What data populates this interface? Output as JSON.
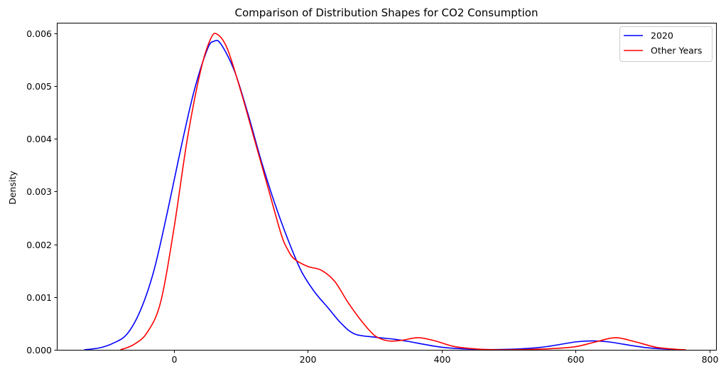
{
  "chart_data": {
    "type": "line",
    "title": "Comparison of Distribution Shapes for CO2 Consumption",
    "xlabel": "",
    "ylabel": "Density",
    "xlim": [
      -175,
      810
    ],
    "ylim": [
      0,
      0.0062
    ],
    "xticks": [
      0,
      200,
      400,
      600,
      800
    ],
    "xtick_labels": [
      "0",
      "200",
      "400",
      "600",
      "800"
    ],
    "yticks": [
      0,
      0.001,
      0.002,
      0.003,
      0.004,
      0.005,
      0.006
    ],
    "ytick_labels": [
      "0.000",
      "0.001",
      "0.002",
      "0.003",
      "0.004",
      "0.005",
      "0.006"
    ],
    "grid": false,
    "legend_position": "top-right",
    "series": [
      {
        "name": "2020",
        "color": "#0000ff",
        "points": [
          [
            -134,
            0.0
          ],
          [
            -110,
            4e-05
          ],
          [
            -90,
            0.00013
          ],
          [
            -70,
            0.0003
          ],
          [
            -50,
            0.00075
          ],
          [
            -30,
            0.0015
          ],
          [
            -10,
            0.0026
          ],
          [
            10,
            0.0038
          ],
          [
            30,
            0.0049
          ],
          [
            50,
            0.0057
          ],
          [
            60,
            0.00585
          ],
          [
            70,
            0.0058
          ],
          [
            90,
            0.0053
          ],
          [
            110,
            0.0045
          ],
          [
            130,
            0.0036
          ],
          [
            150,
            0.0028
          ],
          [
            170,
            0.0021
          ],
          [
            190,
            0.0015
          ],
          [
            210,
            0.0011
          ],
          [
            230,
            0.0008
          ],
          [
            250,
            0.0005
          ],
          [
            270,
            0.0003
          ],
          [
            300,
            0.00024
          ],
          [
            330,
            0.0002
          ],
          [
            350,
            0.00016
          ],
          [
            400,
            5e-05
          ],
          [
            450,
            1e-05
          ],
          [
            500,
            1e-05
          ],
          [
            550,
            5e-05
          ],
          [
            600,
            0.00015
          ],
          [
            625,
            0.00017
          ],
          [
            650,
            0.00015
          ],
          [
            700,
            5e-05
          ],
          [
            740,
            1e-05
          ],
          [
            760,
            0.0
          ]
        ]
      },
      {
        "name": "Other Years",
        "color": "#ff0000",
        "points": [
          [
            -80,
            0.0
          ],
          [
            -60,
            0.0001
          ],
          [
            -40,
            0.00033
          ],
          [
            -20,
            0.0009
          ],
          [
            0,
            0.0023
          ],
          [
            20,
            0.004
          ],
          [
            40,
            0.0053
          ],
          [
            55,
            0.0059
          ],
          [
            65,
            0.00598
          ],
          [
            80,
            0.0057
          ],
          [
            100,
            0.0049
          ],
          [
            120,
            0.004
          ],
          [
            140,
            0.0031
          ],
          [
            160,
            0.0022
          ],
          [
            170,
            0.0019
          ],
          [
            180,
            0.00172
          ],
          [
            200,
            0.00158
          ],
          [
            220,
            0.00151
          ],
          [
            240,
            0.0013
          ],
          [
            260,
            0.0009
          ],
          [
            280,
            0.00055
          ],
          [
            300,
            0.00027
          ],
          [
            320,
            0.00017
          ],
          [
            340,
            0.00018
          ],
          [
            365,
            0.00023
          ],
          [
            390,
            0.00017
          ],
          [
            420,
            6e-05
          ],
          [
            460,
            1e-05
          ],
          [
            500,
            0.0
          ],
          [
            560,
            2e-05
          ],
          [
            600,
            6e-05
          ],
          [
            630,
            0.00015
          ],
          [
            660,
            0.00023
          ],
          [
            690,
            0.00015
          ],
          [
            720,
            5e-05
          ],
          [
            750,
            1e-05
          ],
          [
            765,
            0.0
          ]
        ]
      }
    ]
  }
}
